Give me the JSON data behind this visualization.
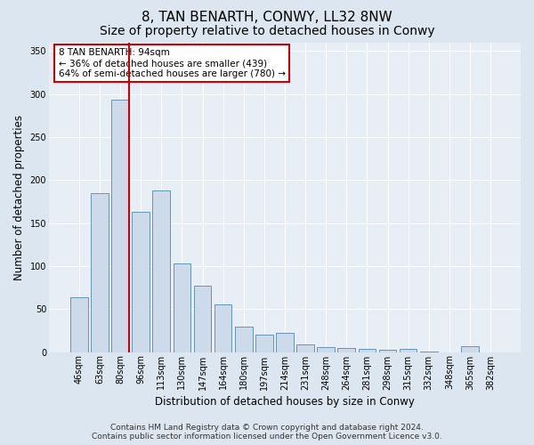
{
  "title": "8, TAN BENARTH, CONWY, LL32 8NW",
  "subtitle": "Size of property relative to detached houses in Conwy",
  "xlabel": "Distribution of detached houses by size in Conwy",
  "ylabel": "Number of detached properties",
  "footer_line1": "Contains HM Land Registry data © Crown copyright and database right 2024.",
  "footer_line2": "Contains public sector information licensed under the Open Government Licence v3.0.",
  "bar_labels": [
    "46sqm",
    "63sqm",
    "80sqm",
    "96sqm",
    "113sqm",
    "130sqm",
    "147sqm",
    "164sqm",
    "180sqm",
    "197sqm",
    "214sqm",
    "231sqm",
    "248sqm",
    "264sqm",
    "281sqm",
    "298sqm",
    "315sqm",
    "332sqm",
    "348sqm",
    "365sqm",
    "382sqm"
  ],
  "bar_values": [
    64,
    185,
    293,
    163,
    188,
    103,
    77,
    55,
    30,
    20,
    22,
    9,
    6,
    5,
    4,
    3,
    4,
    1,
    0,
    7,
    0
  ],
  "bar_color": "#ccdaea",
  "bar_edge_color": "#5588aa",
  "vline_color": "#cc0000",
  "annotation_text": "8 TAN BENARTH: 94sqm\n← 36% of detached houses are smaller (439)\n64% of semi-detached houses are larger (780) →",
  "annotation_box_color": "white",
  "annotation_box_edge_color": "#cc0000",
  "ylim": [
    0,
    360
  ],
  "yticks": [
    0,
    50,
    100,
    150,
    200,
    250,
    300,
    350
  ],
  "background_color": "#dce6f0",
  "axes_background_color": "#e8eef6",
  "grid_color": "white",
  "title_fontsize": 11,
  "subtitle_fontsize": 10,
  "label_fontsize": 8.5,
  "tick_fontsize": 7,
  "footer_fontsize": 6.5
}
